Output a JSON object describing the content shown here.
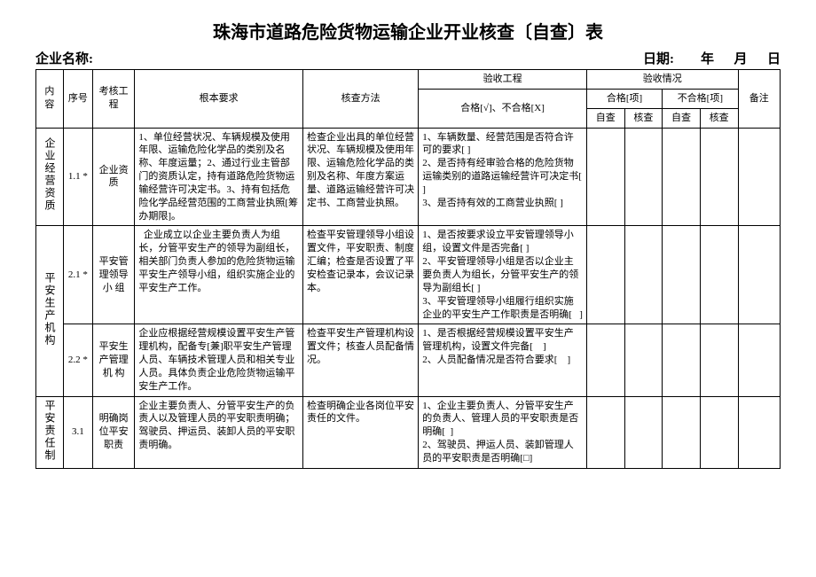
{
  "title": "珠海市道路危险货物运输企业开业核查〔自查〕表",
  "header": {
    "company_label": "企业名称:",
    "date_label": "日期:",
    "year": "年",
    "month": "月",
    "day": "日"
  },
  "thead": {
    "c1": "内容",
    "c2": "序号",
    "c3": "考核工程",
    "c4": "根本要求",
    "c5": "核查方法",
    "c6": "验收工程",
    "c6b": "合格[√]、不合格[X]",
    "c7": "验收情况",
    "c7a": "合格[项]",
    "c7b": "不合格[项]",
    "sub_self": "自查",
    "sub_check": "核查",
    "c8": "备注"
  },
  "sections": [
    {
      "group": "企业经营资质",
      "rows": [
        {
          "no": "1.1 *",
          "proj": "企业资质",
          "req": "1、单位经营状况、车辆规模及使用年限、运输危险化学品的类别及名称、年度运量；2、通过行业主管部门的资质认定，持有道路危险货物运输经营许可决定书。3、持有包括危险化学品经营范围的工商营业执照[筹办期限]。",
          "method": "检查企业出具的单位经营状况、车辆规模及使用年限、运输危险化学品的类别及名称、年度方案运量、道路运输经营许可决定书、工商营业执照。",
          "accept": "1、车辆数量、经营范围是否符合许可的要求[ ]\n2、是否持有经审验合格的危险货物运输类别的道路运输经营许可决定书[ ]\n3、是否持有效的工商营业执照[ ]"
        }
      ]
    },
    {
      "group": "平安生产机构",
      "rows": [
        {
          "no": "2.1 *",
          "proj": "平安管理领导小 组",
          "req": "  企业成立以企业主要负责人为组长，分管平安生产的领导为副组长，相关部门负责人参加的危险货物运输平安生产领导小组，组织实施企业的平安生产工作。",
          "method": "检查平安管理领导小组设置文件，平安职责、制度汇编；检查是否设置了平安检查记录本，会议记录本。",
          "accept": "1、是否按要求设立平安管理领导小组，设置文件是否完备[ ]\n2、平安管理领导小组是否以企业主要负责人为组长，分管平安生产的领导为副组长[ ]\n3、平安管理领导小组履行组织实施企业的平安生产工作职责是否明确[   ]"
        },
        {
          "no": "2.2 *",
          "proj": "平安生产管理机 构",
          "req": "企业应根据经营规模设置平安生产管理机构，配备专[兼]职平安生产管理人员、车辆技术管理人员和相关专业人员。具体负责企业危险货物运输平安生产工作。",
          "method": "检查平安生产管理机构设置文件；核查人员配备情况。",
          "accept": "1、是否根据经营规模设置平安生产管理机构，设置文件完备[    ]\n2、人员配备情况是否符合要求[    ]"
        }
      ]
    },
    {
      "group": "平安责任制",
      "rows": [
        {
          "no": "3.1",
          "proj": "明确岗位平安职责",
          "req": "企业主要负责人、分管平安生产的负责人以及管理人员的平安职责明确；驾驶员、押运员、装卸人员的平安职责明确。",
          "method": "检查明确企业各岗位平安责任的文件。",
          "accept": "1、企业主要负责人、分管平安生产的负责人、管理人员的平安职责是否明确[  ]\n2、驾驶员、押运人员、装卸管理人员的平安职责是否明确[□]"
        }
      ]
    }
  ]
}
